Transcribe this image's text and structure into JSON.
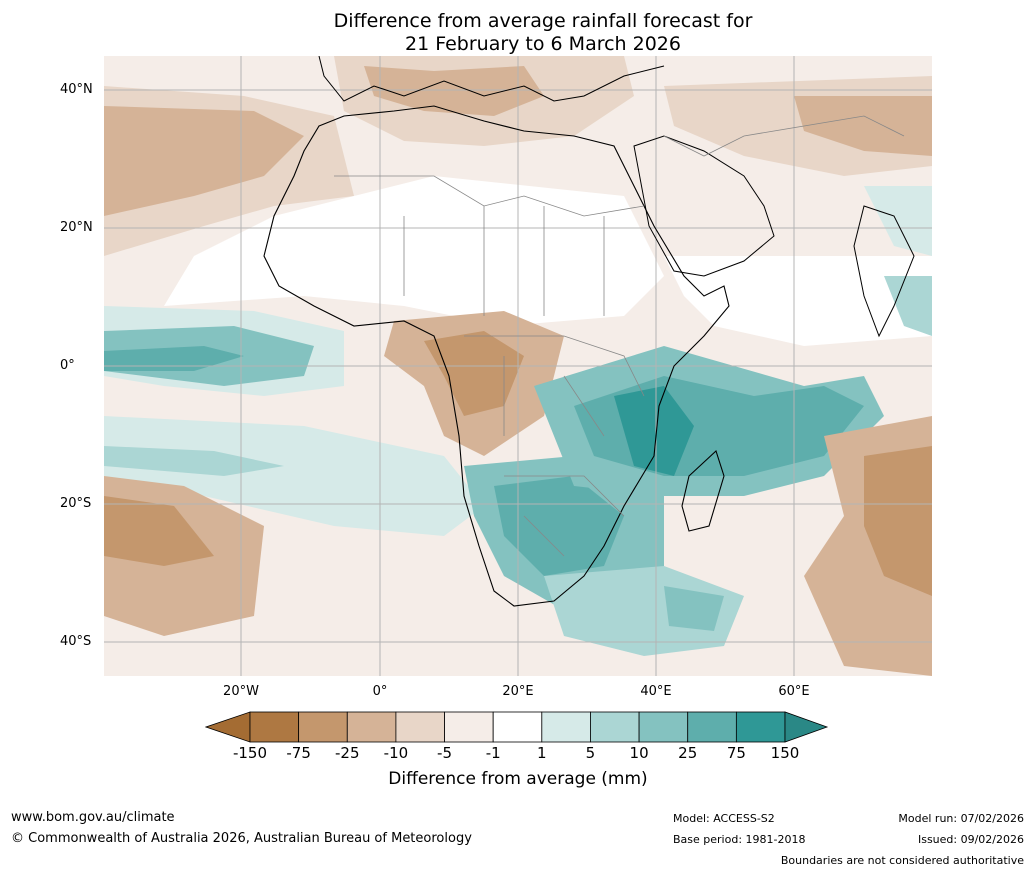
{
  "title": {
    "line1": "Difference from average rainfall forecast for",
    "line2": "21 February to 6 March 2026"
  },
  "map": {
    "lat_labels": [
      "40°N",
      "20°N",
      "0°",
      "20°S",
      "40°S"
    ],
    "lon_labels": [
      "20°W",
      "0°",
      "20°E",
      "40°E",
      "60°E"
    ]
  },
  "legend": {
    "label": "Difference from average (mm)",
    "ticks": [
      "-150",
      "-75",
      "-25",
      "-10",
      "-5",
      "-1",
      "1",
      "5",
      "10",
      "25",
      "75",
      "150"
    ],
    "colors": [
      "#a46c33",
      "#ae7842",
      "#c4976d",
      "#d5b397",
      "#e8d6c8",
      "#f5ede8",
      "#ffffff",
      "#d6eae8",
      "#abd6d4",
      "#84c2c0",
      "#5eaeac",
      "#2f9896",
      "#2a8886"
    ]
  },
  "footer": {
    "url": "www.bom.gov.au/climate",
    "copyright": "© Commonwealth of Australia 2026, Australian Bureau of Meteorology",
    "model": "Model: ACCESS-S2",
    "base_period": "Base period: 1981-2018",
    "model_run": "Model run: 07/02/2026",
    "issued": "Issued: 09/02/2026",
    "disclaimer": "Boundaries are not considered authoritative"
  }
}
